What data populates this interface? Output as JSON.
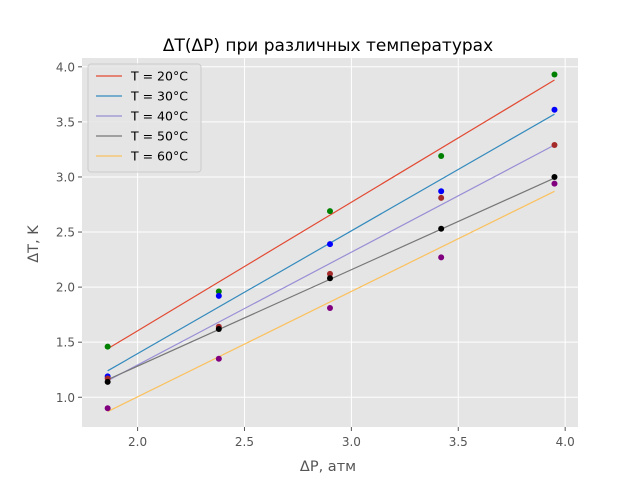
{
  "chart_data": {
    "type": "scatter",
    "title": "ΔT(ΔP) при различных температурах",
    "xlabel": "ΔP, атм",
    "ylabel": "ΔT, K",
    "xlim": [
      1.74,
      4.06
    ],
    "ylim": [
      0.73,
      4.08
    ],
    "xticks": [
      2.0,
      2.5,
      3.0,
      3.5,
      4.0
    ],
    "yticks": [
      1.0,
      1.5,
      2.0,
      2.5,
      3.0,
      3.5,
      4.0
    ],
    "xtick_labels": [
      "2.0",
      "2.5",
      "3.0",
      "3.5",
      "4.0"
    ],
    "ytick_labels": [
      "1.0",
      "1.5",
      "2.0",
      "2.5",
      "3.0",
      "3.5",
      "4.0"
    ],
    "grid": true,
    "legend_position": "top-left",
    "x": [
      1.86,
      2.38,
      2.9,
      3.42,
      3.95
    ],
    "series": [
      {
        "name": "T = 20°C",
        "line_color": "#E24A33",
        "point_color": "#008000",
        "points": [
          1.46,
          1.96,
          2.69,
          3.19,
          3.93
        ],
        "fit": [
          [
            1.86,
            1.44
          ],
          [
            3.95,
            3.88
          ]
        ]
      },
      {
        "name": "T = 30°C",
        "line_color": "#348ABD",
        "point_color": "#0000FF",
        "points": [
          1.19,
          1.92,
          2.39,
          2.87,
          3.61
        ],
        "fit": [
          [
            1.86,
            1.24
          ],
          [
            3.95,
            3.57
          ]
        ]
      },
      {
        "name": "T = 40°C",
        "line_color": "#988ED5",
        "point_color": "#A52A2A",
        "points": [
          1.17,
          1.64,
          2.12,
          2.81,
          3.29
        ],
        "fit": [
          [
            1.86,
            1.15
          ],
          [
            3.95,
            3.29
          ]
        ]
      },
      {
        "name": "T = 50°C",
        "line_color": "#777777",
        "point_color": "#000000",
        "points": [
          1.14,
          1.62,
          2.08,
          2.53,
          3.0
        ],
        "fit": [
          [
            1.86,
            1.16
          ],
          [
            3.95,
            2.99
          ]
        ]
      },
      {
        "name": "T = 60°C",
        "line_color": "#FBC15E",
        "point_color": "#800080",
        "points": [
          0.9,
          1.35,
          1.81,
          2.27,
          2.94
        ],
        "fit": [
          [
            1.86,
            0.87
          ],
          [
            3.95,
            2.87
          ]
        ]
      }
    ]
  }
}
